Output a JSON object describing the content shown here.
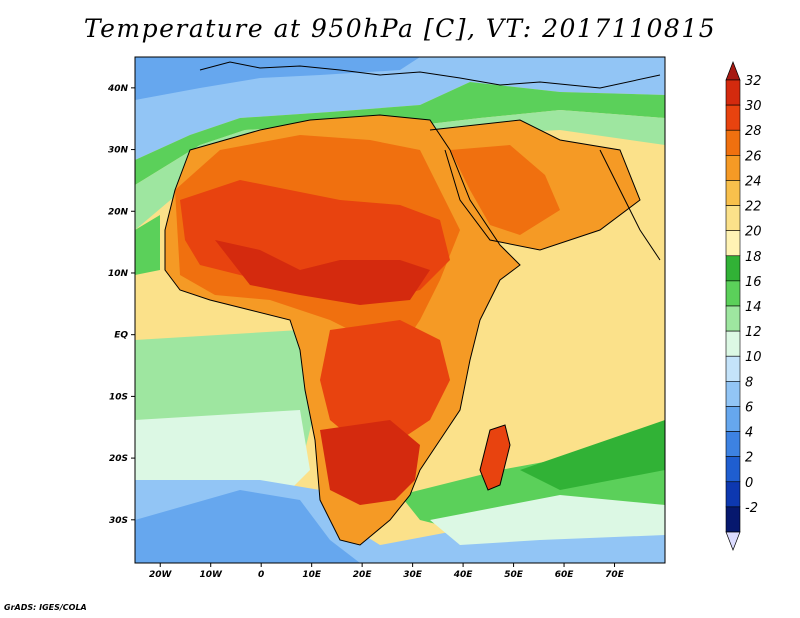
{
  "title": "Temperature at 950hPa [C], VT: 2017110815",
  "footer": "GrADS: IGES/COLA",
  "map": {
    "type": "filled-contour-map",
    "variable": "Temperature at 950hPa",
    "units": "C",
    "valid_time": "2017110815",
    "lon_ticks": [
      "20W",
      "10W",
      "0",
      "10E",
      "20E",
      "30E",
      "40E",
      "50E",
      "60E",
      "70E"
    ],
    "lat_ticks": [
      "40N",
      "30N",
      "20N",
      "10N",
      "EQ",
      "10S",
      "20S",
      "30S"
    ],
    "lon_values": [
      -20,
      -10,
      0,
      10,
      20,
      30,
      40,
      50,
      60,
      70
    ],
    "lat_values": [
      40,
      30,
      20,
      10,
      0,
      -10,
      -20,
      -30
    ]
  },
  "colorbar": {
    "levels": [
      32,
      30,
      28,
      26,
      24,
      22,
      20,
      18,
      16,
      14,
      12,
      10,
      8,
      6,
      4,
      2,
      0,
      -2
    ],
    "labels": [
      "32",
      "30",
      "28",
      "26",
      "24",
      "22",
      "20",
      "18",
      "16",
      "14",
      "12",
      "10",
      "8",
      "6",
      "4",
      "2",
      "0",
      "-2"
    ],
    "colors": [
      "#d42a0e",
      "#e8430f",
      "#f0700f",
      "#f59a25",
      "#f8c04c",
      "#fbe18a",
      "#fff3b4",
      "#31b236",
      "#5bd05a",
      "#9ee6a0",
      "#dcf8e4",
      "#c4e3fa",
      "#92c5f5",
      "#66a7ee",
      "#3d82e2",
      "#1f5ed0",
      "#0d38b0",
      "#06186e"
    ],
    "top_arrow_color": "#a61a12",
    "bottom_arrow_color": "#dcdcff"
  }
}
